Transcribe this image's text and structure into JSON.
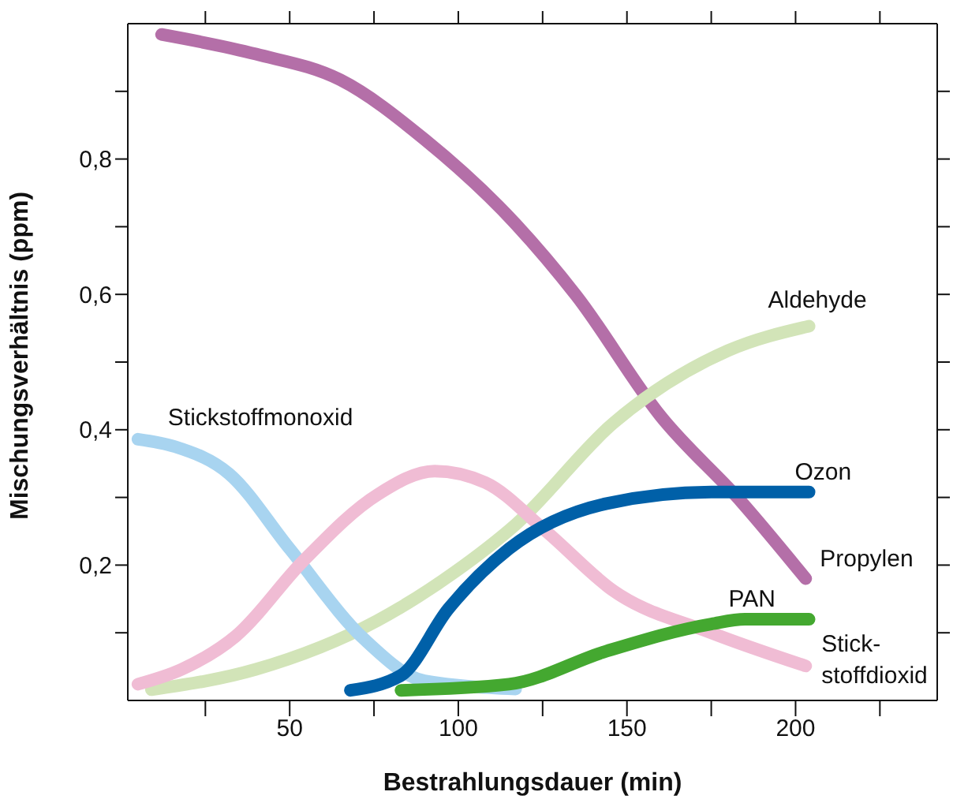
{
  "chart_data": {
    "type": "line",
    "xlabel": "Bestrahlungsdauer (min)",
    "ylabel": "Mischungsverhältnis (ppm)",
    "xlim": [
      2,
      242
    ],
    "ylim": [
      0,
      1
    ],
    "xticks": [
      {
        "value": 25,
        "label": null
      },
      50,
      {
        "value": 75,
        "label": null
      },
      100,
      {
        "value": 125,
        "label": null
      },
      150,
      {
        "value": 175,
        "label": null
      },
      200,
      {
        "value": 225,
        "label": null
      }
    ],
    "yticks": [
      {
        "value": 0.1,
        "label": null
      },
      {
        "value": 0.2,
        "label": "0,2"
      },
      {
        "value": 0.3,
        "label": null
      },
      {
        "value": 0.4,
        "label": "0,4"
      },
      {
        "value": 0.5,
        "label": null
      },
      {
        "value": 0.6,
        "label": "0,6"
      },
      {
        "value": 0.7,
        "label": null
      },
      {
        "value": 0.8,
        "label": "0,8"
      },
      {
        "value": 0.9,
        "label": null
      }
    ],
    "legend": false,
    "marker": "none",
    "line_style": "solid",
    "series": [
      {
        "name": "Propylen",
        "color": "#b46fa8",
        "x": [
          12,
          40,
          65,
          90,
          117,
          135,
          160,
          184,
          203
        ],
        "values": [
          0.984,
          0.955,
          0.917,
          0.829,
          0.704,
          0.598,
          0.42,
          0.293,
          0.18
        ]
      },
      {
        "name": "Aldehyde",
        "color": "#d2e4b8",
        "x": [
          9,
          40,
          76,
          99,
          117,
          146,
          180,
          204
        ],
        "values": [
          0.016,
          0.046,
          0.118,
          0.19,
          0.26,
          0.41,
          0.517,
          0.553
        ]
      },
      {
        "name": "Stickstoffmonoxid",
        "color": "#a8d4f0",
        "x": [
          5,
          16,
          32,
          50,
          72,
          90,
          117
        ],
        "values": [
          0.386,
          0.375,
          0.335,
          0.224,
          0.091,
          0.029,
          0.017
        ]
      },
      {
        "name": "Stick- stoffdioxid",
        "color": "#f0bcd4",
        "x": [
          5,
          18,
          34,
          54,
          76,
          93,
          108,
          126,
          146,
          175,
          203
        ],
        "values": [
          0.024,
          0.046,
          0.095,
          0.206,
          0.304,
          0.339,
          0.322,
          0.25,
          0.162,
          0.1,
          0.051
        ]
      },
      {
        "name": "Ozon",
        "color": "#0060a8",
        "x": [
          68,
          83,
          97,
          115,
          144,
          175,
          204
        ],
        "values": [
          0.015,
          0.037,
          0.135,
          0.224,
          0.291,
          0.308,
          0.308
        ]
      },
      {
        "name": "PAN",
        "color": "#44a830",
        "x": [
          83,
          115,
          144,
          175,
          185,
          204
        ],
        "values": [
          0.015,
          0.024,
          0.073,
          0.113,
          0.12,
          0.12
        ]
      }
    ]
  }
}
